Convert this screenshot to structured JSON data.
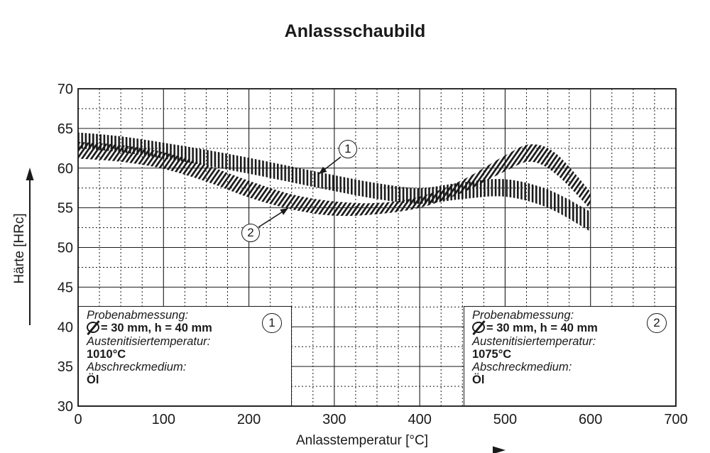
{
  "chart_data": {
    "type": "area",
    "title": "Anlassschaubild",
    "xlabel": "Anlasstemperatur [°C]",
    "ylabel": "Härte [HRc]",
    "xlim": [
      0,
      700
    ],
    "ylim": [
      30,
      70
    ],
    "x_ticks": [
      0,
      100,
      200,
      300,
      400,
      500,
      600,
      700
    ],
    "y_ticks": [
      30,
      35,
      40,
      45,
      50,
      55,
      60,
      65,
      70
    ],
    "grid": true,
    "series": [
      {
        "label": "1",
        "fill": "vertical hatch",
        "x": [
          0,
          50,
          100,
          150,
          200,
          250,
          300,
          350,
          400,
          450,
          500,
          550,
          600
        ],
        "upper": [
          64.5,
          64.0,
          63.2,
          62.3,
          61.3,
          60.2,
          59.1,
          58.1,
          57.5,
          58.2,
          58.6,
          57.3,
          54.5
        ],
        "lower": [
          62.5,
          62.0,
          61.2,
          60.3,
          59.3,
          58.2,
          57.1,
          56.1,
          55.5,
          56.1,
          56.4,
          55.0,
          52.0
        ]
      },
      {
        "label": "2",
        "fill": "diagonal hatch",
        "x": [
          0,
          50,
          100,
          150,
          200,
          250,
          300,
          350,
          400,
          450,
          500,
          530,
          560,
          600
        ],
        "upper": [
          63.3,
          62.9,
          62.0,
          60.4,
          58.4,
          56.7,
          55.8,
          55.6,
          56.4,
          58.5,
          61.6,
          63.0,
          61.8,
          57.0
        ],
        "lower": [
          61.2,
          60.8,
          59.9,
          58.3,
          56.3,
          54.8,
          54.0,
          54.2,
          55.0,
          56.9,
          59.6,
          60.8,
          59.2,
          54.8
        ]
      }
    ],
    "annotations": [
      "1",
      "2"
    ],
    "info_boxes": [
      {
        "number": "1",
        "heading1": "Probenabmessung:",
        "dim": "= 30 mm, h = 40 mm",
        "heading2": "Austenitisiertemperatur:",
        "temp": "1010°C",
        "heading3": "Abschreckmedium:",
        "medium": "Öl"
      },
      {
        "number": "2",
        "heading1": "Probenabmessung:",
        "dim": "= 30 mm, h = 40 mm",
        "heading2": "Austenitisiertemperatur:",
        "temp": "1075°C",
        "heading3": "Abschreckmedium:",
        "medium": "Öl"
      }
    ]
  }
}
